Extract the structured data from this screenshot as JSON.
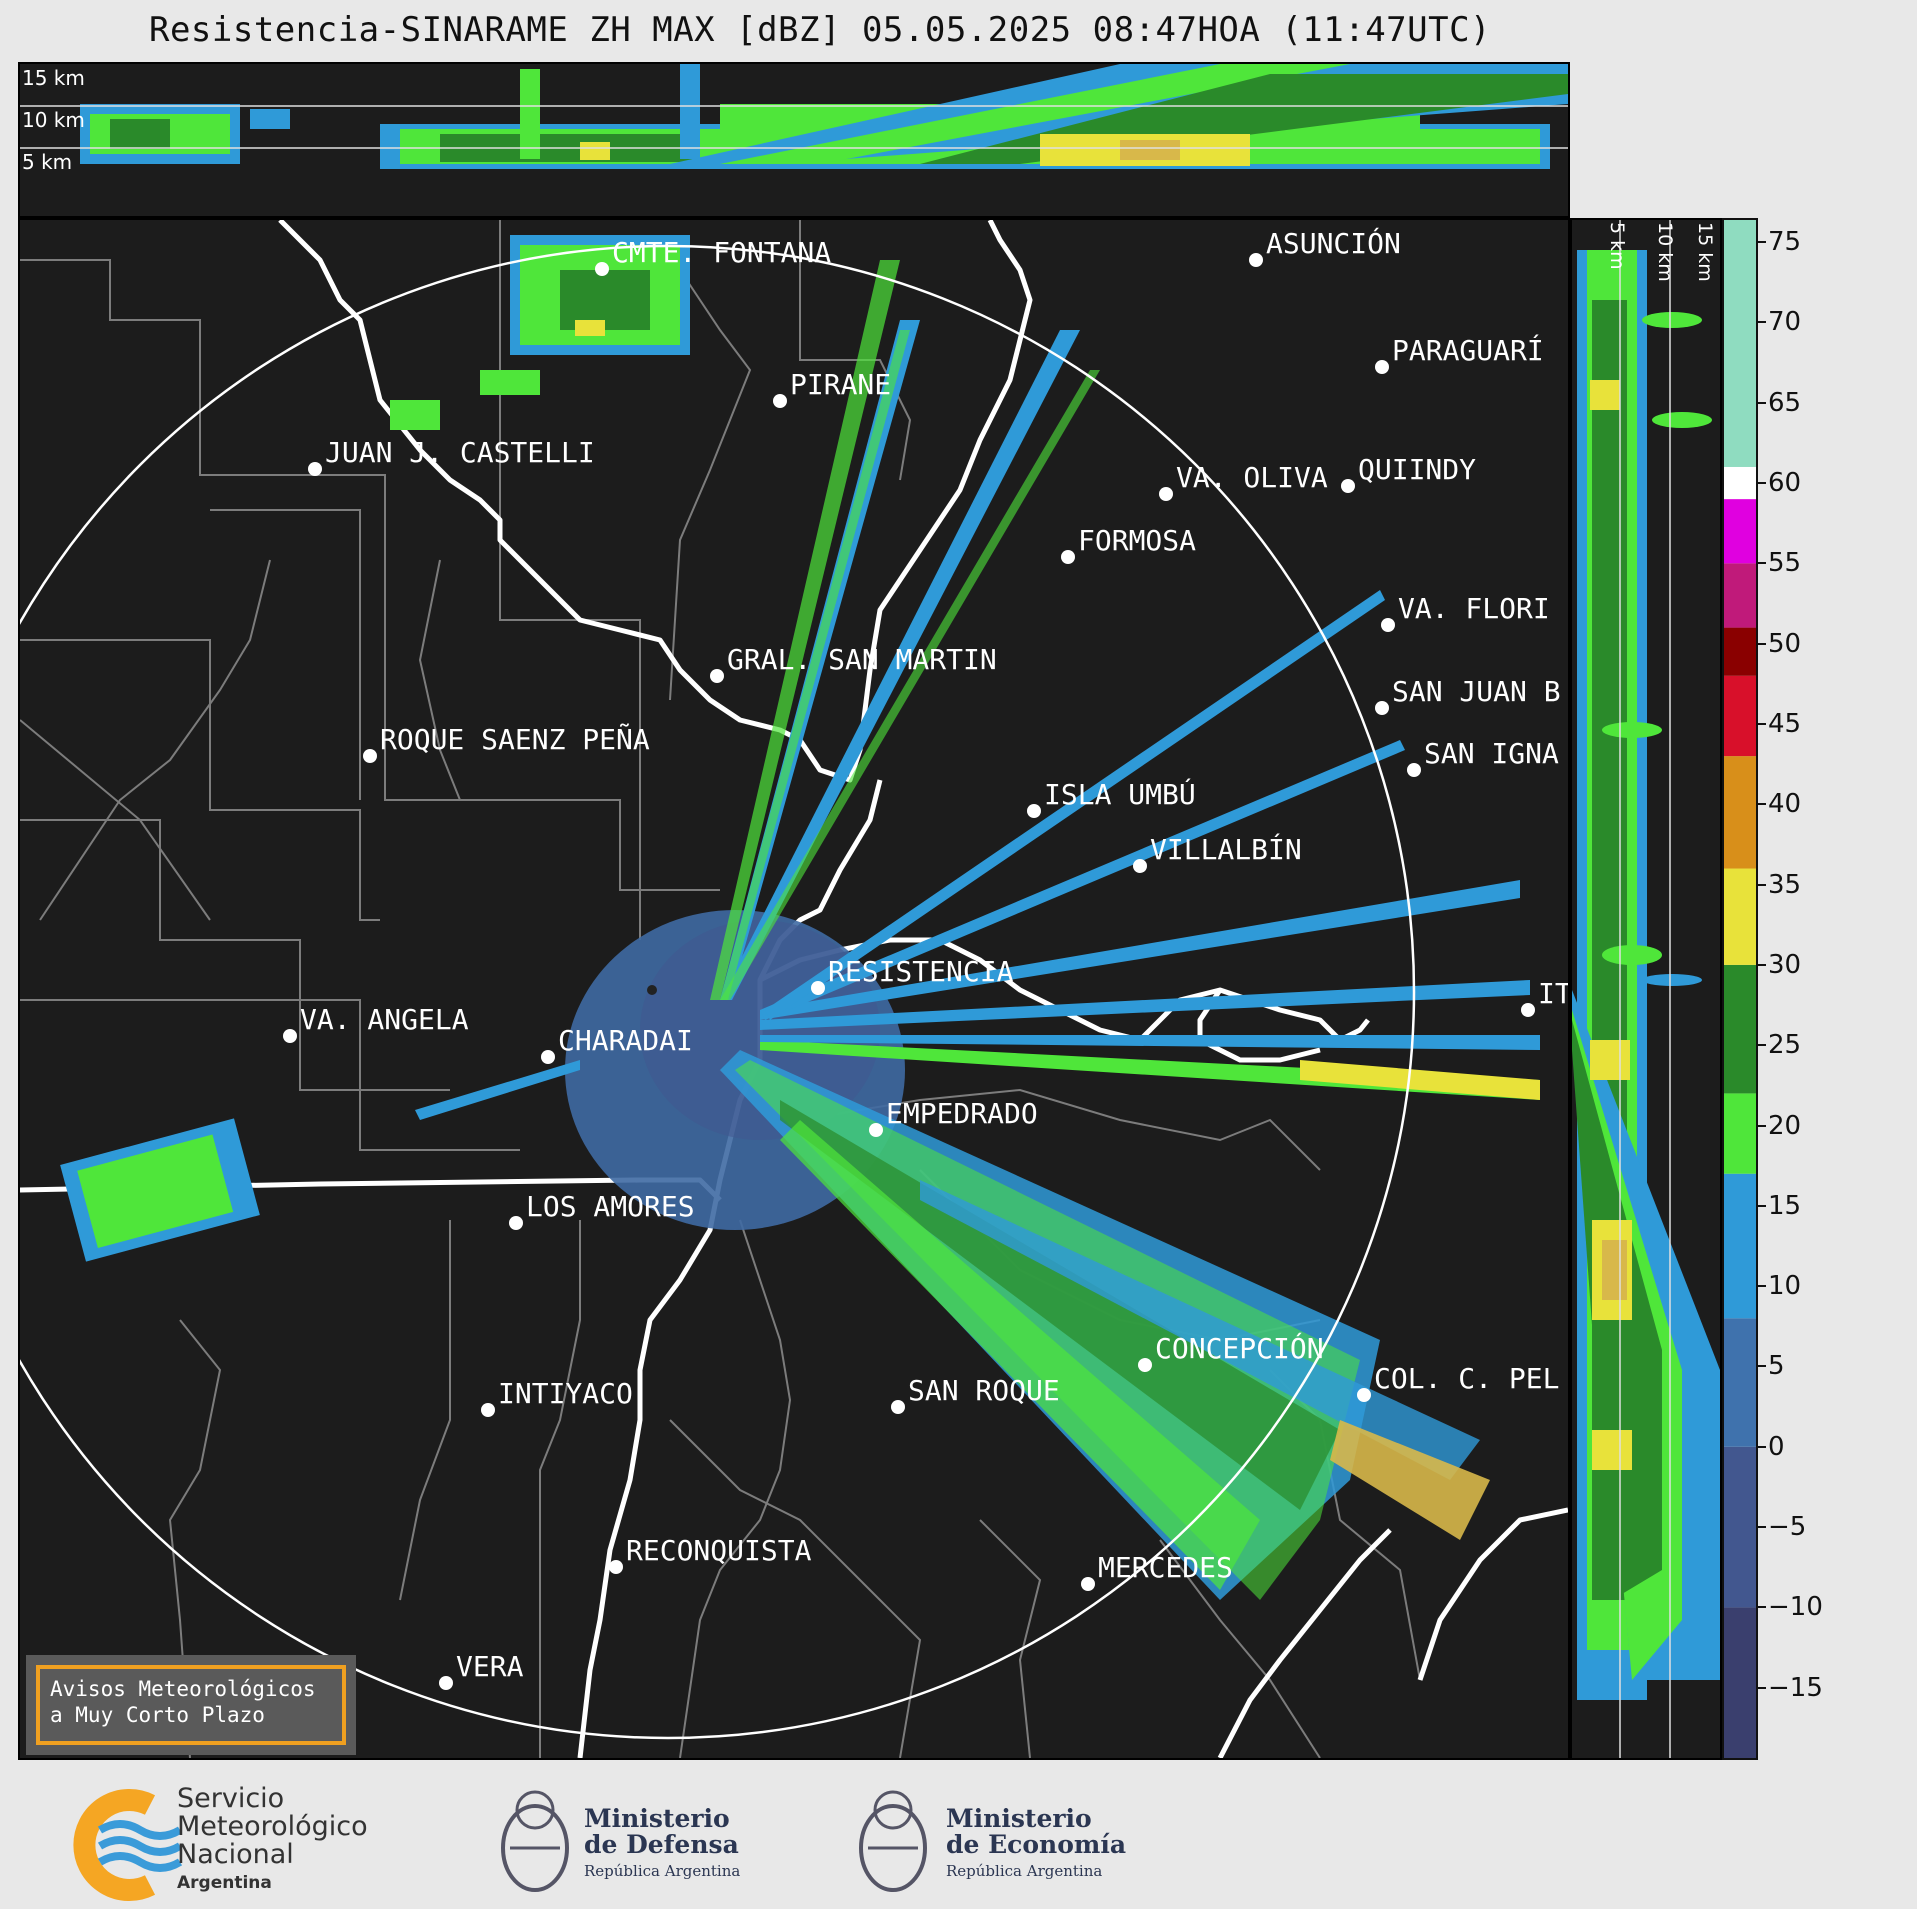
{
  "title": "Resistencia-SINARAME ZH MAX [dBZ] 05.05.2025 08:47HOA (11:47UTC)",
  "top_panel": {
    "height_labels": [
      "15 km",
      "10 km",
      "5 km"
    ]
  },
  "side_panel": {
    "height_labels": [
      "5 km",
      "10 km",
      "15 km"
    ]
  },
  "colorbar": {
    "ticks": [
      "75",
      "70",
      "65",
      "60",
      "55",
      "50",
      "45",
      "40",
      "35",
      "30",
      "25",
      "20",
      "15",
      "10",
      "5",
      "0",
      "−5",
      "−10",
      "−15"
    ],
    "min": -19.5,
    "max": 76.5,
    "scale": [
      {
        "from": -19.5,
        "to": -10,
        "color": "#3a3f6e"
      },
      {
        "from": -10,
        "to": 0,
        "color": "#42578f"
      },
      {
        "from": 0,
        "to": 8,
        "color": "#3f72ad"
      },
      {
        "from": 8,
        "to": 17,
        "color": "#2f9ad8"
      },
      {
        "from": 17,
        "to": 22,
        "color": "#4fe63a"
      },
      {
        "from": 22,
        "to": 30,
        "color": "#2a8a2a"
      },
      {
        "from": 30,
        "to": 36,
        "color": "#e8e23a"
      },
      {
        "from": 36,
        "to": 43,
        "color": "#d88f1a"
      },
      {
        "from": 43,
        "to": 48,
        "color": "#d8102a"
      },
      {
        "from": 48,
        "to": 51,
        "color": "#8a0000"
      },
      {
        "from": 51,
        "to": 55,
        "color": "#c01a7a"
      },
      {
        "from": 55,
        "to": 59,
        "color": "#e000e0"
      },
      {
        "from": 59,
        "to": 61,
        "color": "#ffffff"
      },
      {
        "from": 61,
        "to": 76.5,
        "color": "#8fdcc0"
      }
    ]
  },
  "cities": [
    {
      "name": "CMTE. FONTANA"
    },
    {
      "name": "ASUNCIÓN"
    },
    {
      "name": "PARAGUARÍ"
    },
    {
      "name": "PIRANE"
    },
    {
      "name": "JUAN J. CASTELLI"
    },
    {
      "name": "VA. OLIVA"
    },
    {
      "name": "QUIINDY"
    },
    {
      "name": "FORMOSA"
    },
    {
      "name": "VA. FLORI"
    },
    {
      "name": "GRAL. SAN MARTIN"
    },
    {
      "name": "SAN JUAN B"
    },
    {
      "name": "ROQUE SAENZ PEÑA"
    },
    {
      "name": "SAN IGNA"
    },
    {
      "name": "ISLA UMBÚ"
    },
    {
      "name": "VILLALBÍN"
    },
    {
      "name": "RESISTENCIA"
    },
    {
      "name": "VA. ANGELA"
    },
    {
      "name": "CHARADAI"
    },
    {
      "name": "IT"
    },
    {
      "name": "EMPEDRADO"
    },
    {
      "name": "LOS AMORES"
    },
    {
      "name": "CONCEPCIÓN"
    },
    {
      "name": "COL. C. PEL"
    },
    {
      "name": "SAN ROQUE"
    },
    {
      "name": "INTIYACO"
    },
    {
      "name": "RECONQUISTA"
    },
    {
      "name": "MERCEDES"
    },
    {
      "name": "VERA"
    }
  ],
  "alert_box": {
    "line1": "Avisos Meteorológicos",
    "line2": "a Muy Corto Plazo",
    "border_color": "#f0a020"
  },
  "footer": {
    "smn": {
      "line1": "Servicio",
      "line2": "Meteorológico",
      "line3": "Nacional",
      "sub": "Argentina"
    },
    "defensa": {
      "line1": "Ministerio",
      "line2": "de Defensa",
      "sub": "República Argentina"
    },
    "economia": {
      "line1": "Ministerio",
      "line2": "de Economía",
      "sub": "República Argentina"
    }
  }
}
